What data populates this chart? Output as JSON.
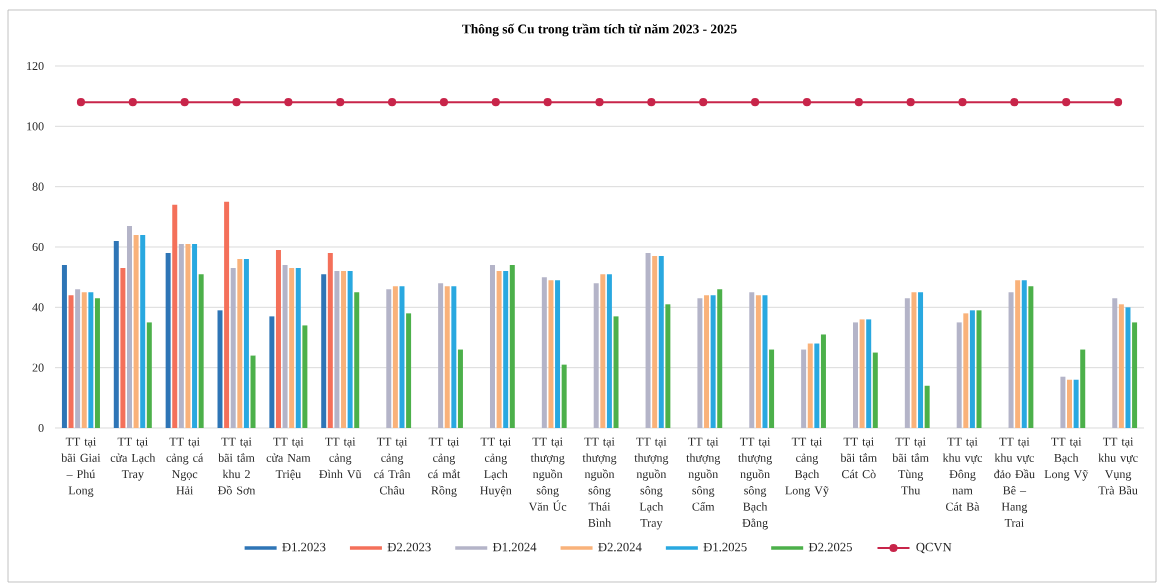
{
  "chart_data": {
    "type": "bar",
    "title": "Thông số Cu trong trầm tích từ năm 2023 - 2025",
    "categories": [
      "TT tại bãi Giai – Phú Long",
      "TT tại cửa Lạch Tray",
      "TT tại cảng cá Ngọc Hải",
      "TT tại bãi tắm khu 2 Đồ Sơn",
      "TT tại cửa Nam Triệu",
      "TT tại cảng Đình Vũ",
      "TT tại cảng cá Trân Châu",
      "TT tại cảng cá mắt Rồng",
      "TT tại cảng Lạch Huyện",
      "TT tại thượng nguồn sông Văn Úc",
      "TT tại thượng nguồn sông Thái Bình",
      "TT tại thượng nguồn sông Lạch Tray",
      "TT tại thượng nguồn sông Cấm",
      "TT tại thượng nguồn sông Bạch Đằng",
      "TT tại cảng Bạch Long Vỹ",
      "TT tại bãi tắm Cát Cò",
      "TT tại bãi tắm Tùng Thu",
      "TT tại khu vực Đông nam Cát Bà",
      "TT tại khu vực đảo Đầu Bê – Hang Trai",
      "TT tại Bạch Long Vỹ",
      "TT tại khu vực Vụng Trà Bầu"
    ],
    "series": [
      {
        "name": "Đ1.2023",
        "color": "#2e75b6",
        "values": [
          54,
          62,
          58,
          39,
          37,
          51,
          null,
          null,
          null,
          null,
          null,
          null,
          null,
          null,
          null,
          null,
          null,
          null,
          null,
          null,
          null
        ]
      },
      {
        "name": "Đ2.2023",
        "color": "#f4705a",
        "values": [
          44,
          53,
          74,
          75,
          59,
          58,
          null,
          null,
          null,
          null,
          null,
          null,
          null,
          null,
          null,
          null,
          null,
          null,
          null,
          null,
          null
        ]
      },
      {
        "name": "Đ1.2024",
        "color": "#b4b4c8",
        "values": [
          46,
          67,
          61,
          53,
          54,
          52,
          46,
          48,
          54,
          50,
          48,
          58,
          43,
          45,
          26,
          35,
          43,
          35,
          45,
          17,
          43
        ]
      },
      {
        "name": "Đ2.2024",
        "color": "#f9b27a",
        "values": [
          45,
          64,
          61,
          56,
          53,
          52,
          47,
          47,
          52,
          49,
          51,
          57,
          44,
          44,
          28,
          36,
          45,
          38,
          49,
          16,
          41
        ]
      },
      {
        "name": "Đ1.2025",
        "color": "#29a8e0",
        "values": [
          45,
          64,
          61,
          56,
          53,
          52,
          47,
          47,
          52,
          49,
          51,
          57,
          44,
          44,
          28,
          36,
          45,
          39,
          49,
          16,
          40
        ]
      },
      {
        "name": "Đ2.2025",
        "color": "#4cb04a",
        "values": [
          43,
          35,
          51,
          24,
          34,
          45,
          38,
          26,
          54,
          21,
          37,
          41,
          46,
          26,
          31,
          25,
          14,
          39,
          47,
          26,
          35
        ]
      },
      {
        "name": "QCVN",
        "type": "line",
        "color": "#c8254a",
        "values": [
          108,
          108,
          108,
          108,
          108,
          108,
          108,
          108,
          108,
          108,
          108,
          108,
          108,
          108,
          108,
          108,
          108,
          108,
          108,
          108,
          108
        ]
      }
    ],
    "ylim": [
      0,
      120
    ],
    "yticks": [
      0,
      20,
      40,
      60,
      80,
      100,
      120
    ],
    "grid": "y",
    "legend": "bottom",
    "marker": "circle"
  }
}
